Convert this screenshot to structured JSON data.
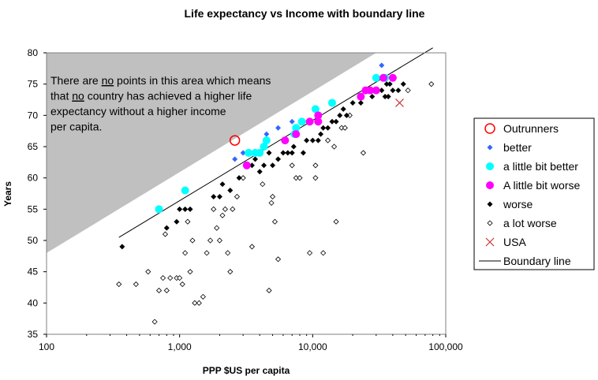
{
  "chart_data": {
    "type": "scatter",
    "title": "Life expectancy vs Income with boundary line",
    "xlabel": "PPP $US per capita",
    "ylabel": "Years",
    "x_scale": "log",
    "xlim": [
      100,
      100000
    ],
    "ylim": [
      35,
      80
    ],
    "x_ticks": [
      100,
      1000,
      10000,
      100000
    ],
    "x_tick_labels": [
      "100",
      "1,000",
      "10,000",
      "100,000"
    ],
    "y_ticks": [
      35,
      40,
      45,
      50,
      55,
      60,
      65,
      70,
      75,
      80
    ],
    "y_tick_labels": [
      "35",
      "40",
      "45",
      "50",
      "55",
      "60",
      "65",
      "70",
      "75",
      "80"
    ],
    "grid": false,
    "legend_position": "right",
    "annotation": {
      "lines": [
        "There are no points in this area which means",
        "that no country has achieved a higher life",
        "expectancy without a higher income",
        "per capita."
      ],
      "underlined_word": "no"
    },
    "shaded_region": {
      "color": "#c0c0c0",
      "boundary": [
        [
          100,
          48
        ],
        [
          100,
          80
        ],
        [
          30000,
          80
        ]
      ]
    },
    "series": [
      {
        "name": "Outrunners",
        "marker": "circle-open",
        "color": "#ff0000",
        "points": [
          [
            2600,
            66
          ]
        ]
      },
      {
        "name": "better",
        "marker": "diamond",
        "color": "#3366ff",
        "points": [
          [
            2600,
            63
          ],
          [
            3000,
            64
          ],
          [
            4500,
            67
          ],
          [
            5500,
            68
          ],
          [
            7000,
            69
          ],
          [
            11000,
            70
          ],
          [
            33000,
            78
          ]
        ]
      },
      {
        "name": "a little bit better",
        "marker": "circle",
        "color": "#00ffff",
        "points": [
          [
            700,
            55
          ],
          [
            1100,
            58
          ],
          [
            3300,
            64
          ],
          [
            3700,
            64
          ],
          [
            4000,
            64
          ],
          [
            4300,
            65
          ],
          [
            4500,
            66
          ],
          [
            7300,
            67
          ],
          [
            7500,
            68
          ],
          [
            8300,
            69
          ],
          [
            10500,
            71
          ],
          [
            14000,
            72
          ],
          [
            30000,
            76
          ],
          [
            35000,
            76
          ]
        ]
      },
      {
        "name": "A little bit worse",
        "marker": "circle",
        "color": "#ff00ff",
        "points": [
          [
            3200,
            62
          ],
          [
            6200,
            66
          ],
          [
            7500,
            67
          ],
          [
            9500,
            69
          ],
          [
            11000,
            69
          ],
          [
            11000,
            70
          ],
          [
            23000,
            73
          ],
          [
            25000,
            74
          ],
          [
            27000,
            74
          ],
          [
            30000,
            74
          ],
          [
            34000,
            76
          ],
          [
            40000,
            76
          ]
        ]
      },
      {
        "name": "worse",
        "marker": "diamond",
        "color": "#000000",
        "points": [
          [
            370,
            49
          ],
          [
            800,
            52
          ],
          [
            950,
            53
          ],
          [
            1000,
            55
          ],
          [
            1100,
            55
          ],
          [
            1200,
            55
          ],
          [
            1800,
            57
          ],
          [
            2000,
            57
          ],
          [
            2100,
            59
          ],
          [
            2400,
            58
          ],
          [
            2800,
            60
          ],
          [
            3500,
            62
          ],
          [
            3700,
            63
          ],
          [
            4000,
            61
          ],
          [
            4300,
            62
          ],
          [
            4700,
            64
          ],
          [
            5000,
            62
          ],
          [
            5500,
            63
          ],
          [
            6000,
            64
          ],
          [
            6500,
            64
          ],
          [
            7000,
            64
          ],
          [
            7200,
            65
          ],
          [
            8500,
            64
          ],
          [
            9000,
            66
          ],
          [
            10000,
            66
          ],
          [
            11000,
            66
          ],
          [
            11500,
            67
          ],
          [
            12000,
            68
          ],
          [
            13000,
            68
          ],
          [
            14000,
            69
          ],
          [
            15000,
            69
          ],
          [
            16000,
            70
          ],
          [
            17000,
            71
          ],
          [
            18000,
            70
          ],
          [
            20000,
            72
          ],
          [
            23000,
            72
          ],
          [
            28000,
            73
          ],
          [
            33000,
            74
          ],
          [
            36000,
            75
          ],
          [
            38000,
            75
          ],
          [
            40000,
            74
          ],
          [
            44000,
            74
          ],
          [
            48000,
            75
          ],
          [
            35000,
            73
          ],
          [
            37000,
            73
          ]
        ]
      },
      {
        "name": "a lot worse",
        "marker": "diamond-open",
        "color": "#000000",
        "points": [
          [
            350,
            43
          ],
          [
            470,
            43
          ],
          [
            580,
            45
          ],
          [
            650,
            37
          ],
          [
            700,
            42
          ],
          [
            750,
            44
          ],
          [
            780,
            51
          ],
          [
            800,
            42
          ],
          [
            850,
            44
          ],
          [
            950,
            44
          ],
          [
            1000,
            44
          ],
          [
            1050,
            43
          ],
          [
            1100,
            48
          ],
          [
            1150,
            53
          ],
          [
            1200,
            45
          ],
          [
            1250,
            50
          ],
          [
            1300,
            40
          ],
          [
            1400,
            40
          ],
          [
            1500,
            41
          ],
          [
            1600,
            48
          ],
          [
            1700,
            50
          ],
          [
            1800,
            55
          ],
          [
            1900,
            52
          ],
          [
            2000,
            50
          ],
          [
            2100,
            54
          ],
          [
            2200,
            55
          ],
          [
            2300,
            48
          ],
          [
            2400,
            45
          ],
          [
            2500,
            55
          ],
          [
            2700,
            57
          ],
          [
            3000,
            60
          ],
          [
            3500,
            49
          ],
          [
            4200,
            59
          ],
          [
            4700,
            42
          ],
          [
            4900,
            56
          ],
          [
            5000,
            57
          ],
          [
            5200,
            53
          ],
          [
            5500,
            47
          ],
          [
            7000,
            62
          ],
          [
            7500,
            60
          ],
          [
            8000,
            60
          ],
          [
            9500,
            48
          ],
          [
            10500,
            60
          ],
          [
            10500,
            62
          ],
          [
            12000,
            48
          ],
          [
            13000,
            66
          ],
          [
            14500,
            65
          ],
          [
            15000,
            53
          ],
          [
            16500,
            68
          ],
          [
            17500,
            68
          ],
          [
            19000,
            70
          ],
          [
            24000,
            64
          ],
          [
            52000,
            74
          ],
          [
            78000,
            75
          ]
        ]
      },
      {
        "name": "USA",
        "marker": "x",
        "color": "#cc3333",
        "points": [
          [
            45000,
            72
          ]
        ]
      },
      {
        "name": "Boundary line",
        "marker": "line",
        "color": "#000000",
        "points": [
          [
            350,
            50.5
          ],
          [
            80000,
            80.8
          ]
        ]
      }
    ]
  }
}
